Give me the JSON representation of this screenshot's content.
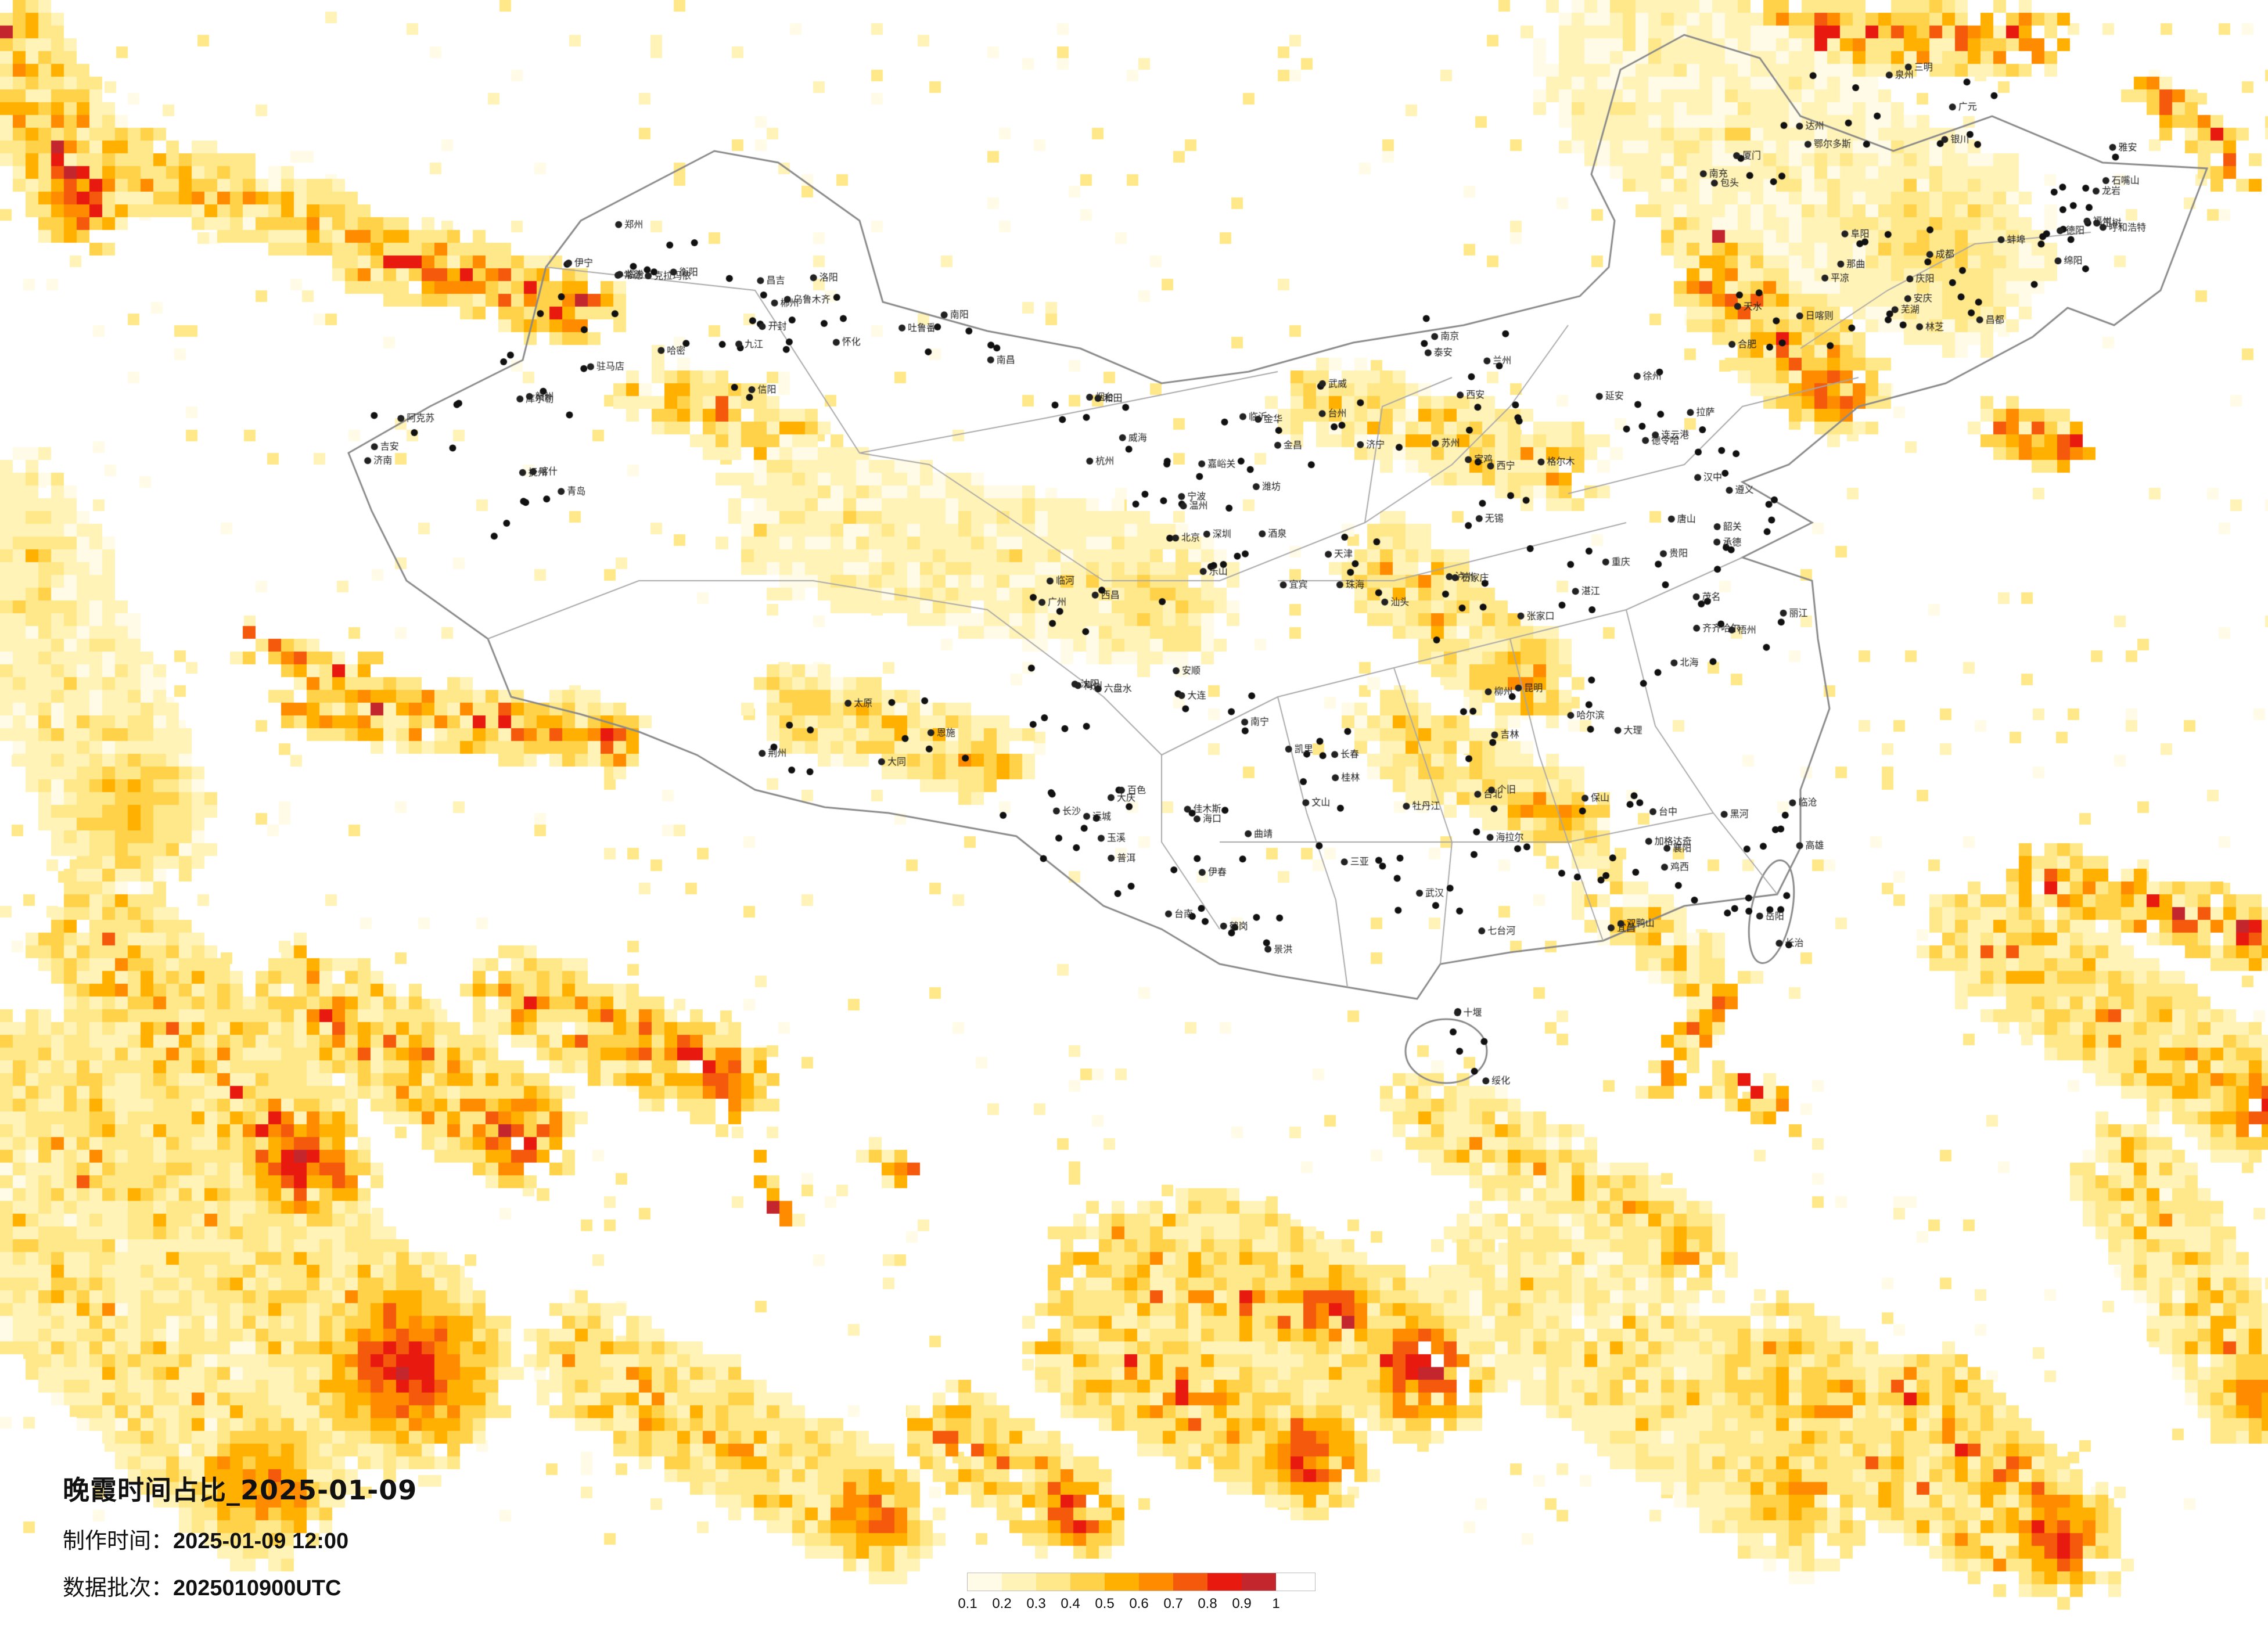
{
  "title": "晚霞时间占比_2025-01-09",
  "made_time_label": "制作时间：",
  "made_time_value": "2025-01-09 12:00",
  "batch_label": "数据批次：",
  "batch_value": "2025010900UTC",
  "legend": {
    "ticks": [
      "0.1",
      "0.2",
      "0.3",
      "0.4",
      "0.5",
      "0.6",
      "0.7",
      "0.8",
      "0.9",
      "1"
    ],
    "colors": [
      "#fffbe6",
      "#fff3b8",
      "#ffe88a",
      "#ffd24a",
      "#ffb000",
      "#ff8c00",
      "#f55a0c",
      "#e81a10",
      "#c4262e"
    ]
  },
  "cities": [
    "伊宁",
    "克拉玛依",
    "昌吉",
    "乌鲁木齐",
    "吐鲁番",
    "哈密",
    "库尔勒",
    "阿克苏",
    "喀什",
    "和田",
    "嘉峪关",
    "酒泉",
    "金昌",
    "武威",
    "兰州",
    "西宁",
    "格尔木",
    "德令哈",
    "拉萨",
    "日喀则",
    "林芝",
    "昌都",
    "那曲",
    "玉树",
    "呼和浩特",
    "包头",
    "鄂尔多斯",
    "银川",
    "石嘴山",
    "临河",
    "北京",
    "天津",
    "石家庄",
    "张家口",
    "承德",
    "唐山",
    "沈阳",
    "大连",
    "长春",
    "吉林",
    "哈尔滨",
    "齐齐哈尔",
    "大庆",
    "佳木斯",
    "牡丹江",
    "海拉尔",
    "加格达奇",
    "黑河",
    "伊春",
    "鹤岗",
    "七台河",
    "双鸭山",
    "鸡西",
    "绥化",
    "太原",
    "大同",
    "运城",
    "长治",
    "临汾",
    "郑州",
    "洛阳",
    "开封",
    "南阳",
    "信阳",
    "驻马店",
    "济南",
    "青岛",
    "烟台",
    "威海",
    "潍坊",
    "临沂",
    "济宁",
    "泰安",
    "西安",
    "宝鸡",
    "延安",
    "汉中",
    "天水",
    "平凉",
    "庆阳",
    "成都",
    "绵阳",
    "德阳",
    "南充",
    "达州",
    "广元",
    "雅安",
    "西昌",
    "乐山",
    "宜宾",
    "泸州",
    "重庆",
    "贵阳",
    "遵义",
    "六盘水",
    "安顺",
    "凯里",
    "昆明",
    "大理",
    "丽江",
    "玉溪",
    "曲靖",
    "文山",
    "个旧",
    "保山",
    "临沧",
    "普洱",
    "景洪",
    "武汉",
    "宜昌",
    "襄阳",
    "十堰",
    "荆州",
    "恩施",
    "长沙",
    "岳阳",
    "常德",
    "衡阳",
    "郴州",
    "怀化",
    "南昌",
    "九江",
    "赣州",
    "吉安",
    "抚州",
    "杭州",
    "宁波",
    "温州",
    "金华",
    "台州",
    "南京",
    "苏州",
    "无锡",
    "徐州",
    "连云港",
    "合肥",
    "芜湖",
    "安庆",
    "阜阳",
    "蚌埠",
    "福州",
    "厦门",
    "泉州",
    "三明",
    "龙岩",
    "广州",
    "深圳",
    "珠海",
    "汕头",
    "湛江",
    "茂名",
    "韶关",
    "梅州",
    "南宁",
    "桂林",
    "柳州",
    "北海",
    "梧州",
    "百色",
    "海口",
    "三亚",
    "台北",
    "台中",
    "高雄",
    "台南"
  ]
}
